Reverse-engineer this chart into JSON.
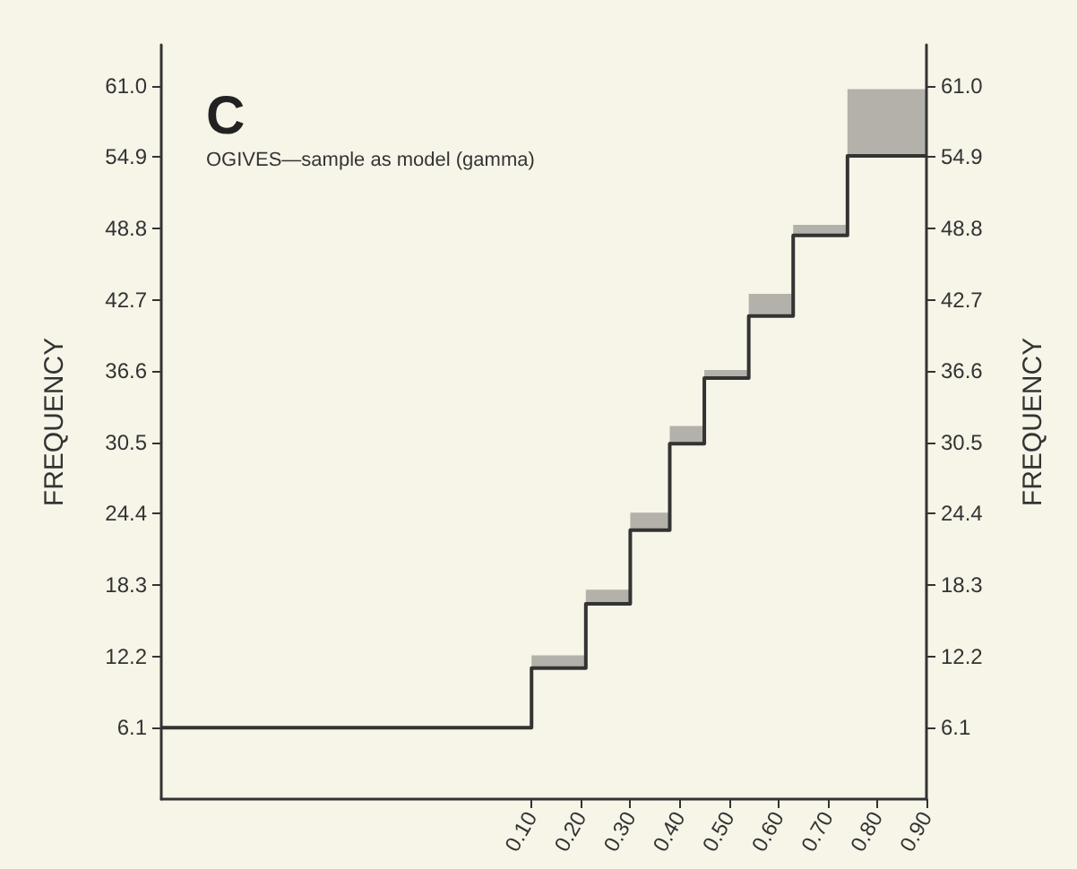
{
  "chart_data": {
    "type": "step",
    "title": "C",
    "subtitle": "OGIVES—sample as model (gamma)",
    "ylabel": "FREQUENCY",
    "y2label": "FREQUENCY",
    "x": [
      -0.65,
      0.1,
      0.21,
      0.3,
      0.38,
      0.45,
      0.54,
      0.63,
      0.74,
      0.9
    ],
    "series": [
      {
        "color": "#333333",
        "values": [
          6.1,
          11.2,
          16.7,
          23.0,
          30.4,
          36.0,
          41.3,
          48.2,
          55.0,
          55.0
        ],
        "lower": [
          6.1,
          11.2,
          16.7,
          23.0,
          30.4,
          36.0,
          41.3,
          48.2,
          55.0,
          55.0
        ],
        "upper": [
          6.1,
          12.3,
          17.9,
          24.5,
          31.9,
          36.7,
          43.2,
          49.1,
          60.7,
          60.7
        ]
      }
    ],
    "xlim": [
      -0.65,
      0.9
    ],
    "xticks": [
      {
        "value": 0.1,
        "label": "0.10"
      },
      {
        "value": 0.2,
        "label": "0.20"
      },
      {
        "value": 0.3,
        "label": "0.30"
      },
      {
        "value": 0.4,
        "label": "0.40"
      },
      {
        "value": 0.5,
        "label": "0.50"
      },
      {
        "value": 0.6,
        "label": "0.60"
      },
      {
        "value": 0.7,
        "label": "0.70"
      },
      {
        "value": 0.8,
        "label": "0.80"
      },
      {
        "value": 0.9,
        "label": "0.90"
      }
    ],
    "ylim": [
      0,
      64.5
    ],
    "yticks": [
      6.1,
      12.2,
      18.3,
      24.4,
      30.5,
      36.6,
      42.7,
      48.8,
      54.9,
      {
        "value": 61,
        "label": "61.0"
      }
    ],
    "y2lim": [
      0,
      64.5
    ],
    "y2ticks": [
      6.1,
      12.2,
      18.3,
      24.4,
      30.5,
      36.6,
      42.7,
      48.8,
      54.9,
      {
        "value": 61,
        "label": "61.0"
      }
    ],
    "grid": false,
    "marker": "none",
    "line_style": "solid"
  }
}
